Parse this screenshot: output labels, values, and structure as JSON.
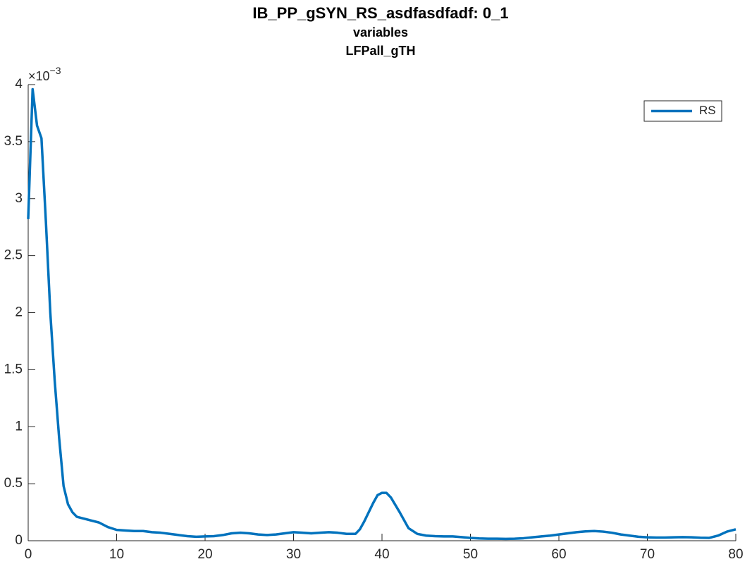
{
  "chart_data": {
    "type": "line",
    "title_lines": [
      "IB_PP_gSYN_RS_asdfasdfadf: 0_1",
      "variables",
      "LFPall_gTH"
    ],
    "y_exponent": {
      "base": "×10",
      "power": "−3"
    },
    "x": [
      0,
      0.5,
      1,
      1.5,
      2,
      2.5,
      3,
      3.5,
      4,
      4.5,
      5,
      5.5,
      6,
      7,
      8,
      9,
      10,
      11,
      12,
      13,
      14,
      15,
      16,
      17,
      18,
      19,
      20,
      21,
      22,
      23,
      24,
      25,
      26,
      27,
      28,
      29,
      30,
      31,
      32,
      33,
      34,
      35,
      36,
      37,
      37.5,
      38,
      39,
      39.5,
      40,
      40.5,
      41,
      42,
      43,
      44,
      45,
      46,
      47,
      48,
      49,
      50,
      51,
      52,
      53,
      54,
      55,
      56,
      57,
      58,
      59,
      60,
      61,
      62,
      63,
      64,
      65,
      66,
      67,
      68,
      69,
      70,
      71,
      72,
      73,
      74,
      75,
      76,
      77,
      78,
      79,
      80
    ],
    "series": [
      {
        "name": "RS",
        "color": "#0072bd",
        "values": [
          2.82,
          3.96,
          3.64,
          3.53,
          2.8,
          2.0,
          1.4,
          0.9,
          0.48,
          0.32,
          0.25,
          0.21,
          0.2,
          0.18,
          0.16,
          0.12,
          0.095,
          0.09,
          0.085,
          0.085,
          0.075,
          0.07,
          0.06,
          0.05,
          0.04,
          0.035,
          0.038,
          0.04,
          0.05,
          0.065,
          0.07,
          0.065,
          0.055,
          0.05,
          0.055,
          0.065,
          0.075,
          0.07,
          0.065,
          0.07,
          0.075,
          0.07,
          0.06,
          0.06,
          0.1,
          0.17,
          0.33,
          0.4,
          0.42,
          0.42,
          0.38,
          0.25,
          0.11,
          0.06,
          0.045,
          0.04,
          0.038,
          0.038,
          0.032,
          0.025,
          0.02,
          0.018,
          0.018,
          0.016,
          0.018,
          0.022,
          0.03,
          0.038,
          0.045,
          0.055,
          0.065,
          0.075,
          0.082,
          0.085,
          0.08,
          0.07,
          0.055,
          0.045,
          0.035,
          0.03,
          0.028,
          0.028,
          0.03,
          0.032,
          0.03,
          0.026,
          0.025,
          0.045,
          0.08,
          0.1
        ]
      }
    ],
    "xlim": [
      0,
      80
    ],
    "xticks": [
      0,
      10,
      20,
      30,
      40,
      50,
      60,
      70,
      80
    ],
    "ylim": [
      0,
      4
    ],
    "yticks": [
      0,
      0.5,
      1,
      1.5,
      2,
      2.5,
      3,
      3.5,
      4
    ],
    "grid": false,
    "legend": "top-right"
  }
}
